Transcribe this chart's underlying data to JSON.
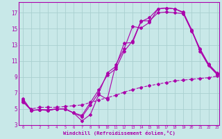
{
  "xlabel": "Windchill (Refroidissement éolien,°C)",
  "bg_color": "#c8e8e8",
  "grid_color": "#aad0d0",
  "line_color": "#aa00aa",
  "spine_color": "#aa00aa",
  "x_min": 0,
  "x_max": 23,
  "y_min": 3,
  "y_max": 18,
  "series1_x": [
    0,
    1,
    2,
    3,
    4,
    5,
    6,
    7,
    8,
    9,
    10,
    11,
    12,
    13,
    14,
    15,
    16,
    17,
    18,
    19,
    20,
    21,
    22,
    23
  ],
  "series1_y": [
    6.3,
    4.8,
    4.9,
    4.9,
    5.0,
    5.0,
    4.5,
    3.5,
    4.3,
    6.8,
    6.2,
    10.5,
    12.5,
    15.3,
    15.1,
    15.8,
    17.5,
    17.6,
    17.5,
    17.1,
    14.9,
    12.4,
    10.5,
    9.4
  ],
  "series2_x": [
    0,
    1,
    2,
    3,
    4,
    5,
    6,
    7,
    8,
    9,
    10,
    11,
    12,
    13,
    14,
    15,
    16,
    17,
    18,
    19,
    20,
    21,
    22,
    23
  ],
  "series2_y": [
    6.1,
    4.8,
    4.9,
    4.8,
    5.0,
    5.0,
    4.5,
    4.0,
    5.5,
    7.0,
    9.5,
    10.3,
    13.2,
    13.3,
    15.9,
    16.4,
    17.5,
    17.6,
    17.5,
    17.0,
    14.8,
    12.2,
    10.4,
    9.3
  ],
  "series3_x": [
    0,
    1,
    2,
    3,
    4,
    5,
    6,
    7,
    8,
    9,
    10,
    11,
    12,
    13,
    14,
    15,
    16,
    17,
    18,
    19,
    20,
    21,
    22,
    23
  ],
  "series3_y": [
    5.9,
    4.8,
    4.9,
    4.8,
    5.0,
    5.0,
    4.5,
    4.2,
    5.8,
    7.4,
    9.2,
    10.0,
    12.2,
    13.5,
    16.0,
    16.0,
    17.0,
    17.1,
    17.0,
    16.9,
    14.7,
    12.5,
    10.6,
    9.5
  ],
  "series4_x": [
    0,
    1,
    2,
    3,
    4,
    5,
    6,
    7,
    8,
    9,
    10,
    11,
    12,
    13,
    14,
    15,
    16,
    17,
    18,
    19,
    20,
    21,
    22,
    23
  ],
  "series4_y": [
    5.8,
    5.0,
    5.2,
    5.2,
    5.2,
    5.3,
    5.4,
    5.5,
    5.8,
    6.1,
    6.4,
    6.7,
    7.1,
    7.4,
    7.7,
    7.9,
    8.1,
    8.3,
    8.5,
    8.6,
    8.7,
    8.8,
    8.9,
    9.1
  ],
  "xticks": [
    0,
    1,
    2,
    3,
    4,
    5,
    6,
    7,
    8,
    9,
    10,
    11,
    12,
    13,
    14,
    15,
    16,
    17,
    18,
    19,
    20,
    21,
    22,
    23
  ],
  "yticks": [
    3,
    5,
    7,
    9,
    11,
    13,
    15,
    17
  ]
}
